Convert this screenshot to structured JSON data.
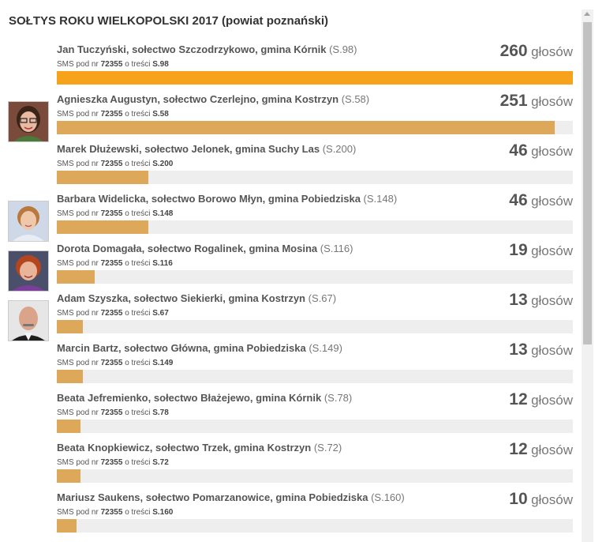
{
  "title": "SOŁTYS ROKU WIELKOPOLSKI 2017 (powiat poznański)",
  "sms_prefix": "SMS pod nr",
  "sms_number": "72355",
  "sms_middle": "o treści",
  "votes_label": "głosów",
  "bar_colors": {
    "leader": "#f7a21b",
    "other": "#dda85a",
    "track": "#eeeeee"
  },
  "candidates": [
    {
      "name": "Jan Tuczyński, sołectwo Szczodrzykowo, gmina Kórnik",
      "code": "(S.98)",
      "sms_code": "S.98",
      "votes": "260",
      "share": 1.0,
      "photo": false
    },
    {
      "name": "Agnieszka Augustyn, sołectwo Czerlejno, gmina Kostrzyn",
      "code": "(S.58)",
      "sms_code": "S.58",
      "votes": "251",
      "share": 0.965,
      "photo": true,
      "photo_icon": "woman-dark-hair-glasses"
    },
    {
      "name": "Marek Dłużewski, sołectwo Jelonek, gmina Suchy Las",
      "code": "(S.200)",
      "sms_code": "S.200",
      "votes": "46",
      "share": 0.177,
      "photo": false
    },
    {
      "name": "Barbara Widelicka, sołectwo Borowo Młyn, gmina Pobiedziska",
      "code": "(S.148)",
      "sms_code": "S.148",
      "votes": "46",
      "share": 0.177,
      "photo": true,
      "photo_icon": "woman-light-hair"
    },
    {
      "name": "Dorota Domagała, sołectwo Rogalinek, gmina Mosina",
      "code": "(S.116)",
      "sms_code": "S.116",
      "votes": "19",
      "share": 0.073,
      "photo": true,
      "photo_icon": "woman-red-hair"
    },
    {
      "name": "Adam Szyszka, sołectwo Siekierki, gmina Kostrzyn",
      "code": "(S.67)",
      "sms_code": "S.67",
      "votes": "13",
      "share": 0.05,
      "photo": true,
      "photo_icon": "man-bald-mustache"
    },
    {
      "name": "Marcin Bartz, sołectwo Główna, gmina Pobiedziska",
      "code": "(S.149)",
      "sms_code": "S.149",
      "votes": "13",
      "share": 0.05,
      "photo": false
    },
    {
      "name": "Beata Jefremienko, sołectwo Błażejewo, gmina Kórnik",
      "code": "(S.78)",
      "sms_code": "S.78",
      "votes": "12",
      "share": 0.046,
      "photo": false
    },
    {
      "name": "Beata Knopkiewicz, sołectwo Trzek, gmina Kostrzyn",
      "code": "(S.72)",
      "sms_code": "S.72",
      "votes": "12",
      "share": 0.046,
      "photo": false
    },
    {
      "name": "Mariusz Saukens, sołectwo Pomarzanowice, gmina Pobiedziska",
      "code": "(S.160)",
      "sms_code": "S.160",
      "votes": "10",
      "share": 0.038,
      "photo": false
    }
  ]
}
